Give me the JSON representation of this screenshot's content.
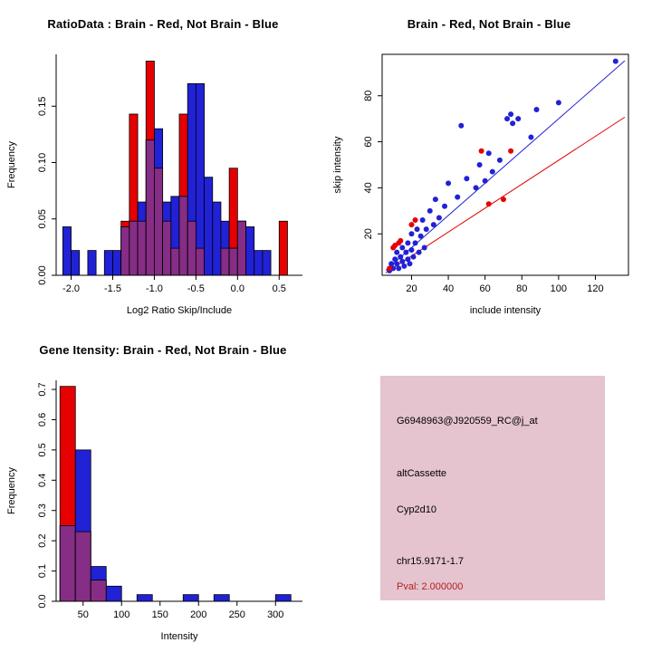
{
  "colors": {
    "red": "#e60000",
    "blue": "#2121d6",
    "overlap": "#862d86",
    "axis": "#000000",
    "info_bg": "#e5c3cf",
    "pval": "#b22222"
  },
  "info_panel": {
    "lines": [
      "G6948963@J920559_RC@j_at",
      "altCassette",
      "Cyp2d10",
      "chr15.9171-1.7",
      "Pval: 2.000000"
    ]
  },
  "chart_data": [
    {
      "type": "bar",
      "subtype": "overlaid-histogram",
      "title": "RatioData : Brain - Red, Not Brain - Blue",
      "xlabel": "Log2 Ratio Skip/Include",
      "ylabel": "Frequency",
      "xlim": [
        -2.18,
        0.78
      ],
      "ylim": [
        0,
        0.196
      ],
      "xticks": [
        -2.0,
        -1.5,
        -1.0,
        -0.5,
        0.0,
        0.5
      ],
      "xtick_labels": [
        "-2.0",
        "-1.5",
        "-1.0",
        "-0.5",
        "0.0",
        "0.5"
      ],
      "yticks": [
        0.0,
        0.05,
        0.1,
        0.15
      ],
      "ytick_labels": [
        "0.00",
        "0.05",
        "0.10",
        "0.15"
      ],
      "bins_start": -2.1,
      "bin_width": 0.1,
      "red": [
        0,
        0,
        0,
        0,
        0,
        0,
        0,
        0.048,
        0.143,
        0.048,
        0.19,
        0.095,
        0.048,
        0.024,
        0.143,
        0.048,
        0.024,
        0,
        0,
        0.024,
        0.095,
        0.048,
        0,
        0,
        0,
        0,
        0.048,
        0
      ],
      "blue": [
        0.043,
        0.022,
        0,
        0.022,
        0,
        0.022,
        0.022,
        0.043,
        0.048,
        0.065,
        0.12,
        0.13,
        0.065,
        0.07,
        0.07,
        0.17,
        0.17,
        0.087,
        0.065,
        0.048,
        0.024,
        0.048,
        0.043,
        0.022,
        0.022,
        0,
        0,
        0
      ]
    },
    {
      "type": "scatter",
      "title": "Brain - Red, Not Brain - Blue",
      "xlabel": "include intensity",
      "ylabel": "skip intensity",
      "xlim": [
        4,
        138
      ],
      "ylim": [
        2,
        98
      ],
      "xticks": [
        20,
        40,
        60,
        80,
        100,
        120
      ],
      "xtick_labels": [
        "20",
        "40",
        "60",
        "80",
        "100",
        "120"
      ],
      "yticks": [
        20,
        40,
        60,
        80
      ],
      "ytick_labels": [
        "20",
        "40",
        "60",
        "80"
      ],
      "blue_points": [
        [
          8,
          4
        ],
        [
          9,
          7
        ],
        [
          10,
          5
        ],
        [
          11,
          9
        ],
        [
          12,
          7
        ],
        [
          12,
          12
        ],
        [
          13,
          5
        ],
        [
          14,
          10
        ],
        [
          15,
          8
        ],
        [
          15,
          14
        ],
        [
          16,
          6
        ],
        [
          17,
          12
        ],
        [
          18,
          9
        ],
        [
          18,
          16
        ],
        [
          19,
          7
        ],
        [
          20,
          13
        ],
        [
          20,
          20
        ],
        [
          21,
          10
        ],
        [
          22,
          16
        ],
        [
          23,
          22
        ],
        [
          24,
          12
        ],
        [
          25,
          19
        ],
        [
          26,
          26
        ],
        [
          27,
          14
        ],
        [
          28,
          22
        ],
        [
          30,
          30
        ],
        [
          32,
          24
        ],
        [
          33,
          35
        ],
        [
          35,
          27
        ],
        [
          38,
          32
        ],
        [
          40,
          42
        ],
        [
          45,
          36
        ],
        [
          47,
          67
        ],
        [
          50,
          44
        ],
        [
          55,
          40
        ],
        [
          57,
          50
        ],
        [
          60,
          43
        ],
        [
          62,
          55
        ],
        [
          64,
          47
        ],
        [
          68,
          52
        ],
        [
          72,
          70
        ],
        [
          74,
          72
        ],
        [
          75,
          68
        ],
        [
          78,
          70
        ],
        [
          85,
          62
        ],
        [
          88,
          74
        ],
        [
          100,
          77
        ],
        [
          131,
          95
        ]
      ],
      "red_points": [
        [
          8,
          5
        ],
        [
          10,
          14
        ],
        [
          11,
          15
        ],
        [
          13,
          16
        ],
        [
          14,
          17
        ],
        [
          20,
          24
        ],
        [
          22,
          26
        ],
        [
          58,
          56
        ],
        [
          62,
          33
        ],
        [
          70,
          35
        ],
        [
          74,
          56
        ]
      ],
      "blue_line": [
        [
          6,
          4.2
        ],
        [
          136,
          95.2
        ]
      ],
      "red_line": [
        [
          6,
          3.1
        ],
        [
          136,
          70.7
        ]
      ]
    },
    {
      "type": "bar",
      "subtype": "overlaid-histogram",
      "title": "Gene Itensity: Brain - Red, Not Brain - Blue",
      "xlabel": "Intensity",
      "ylabel": "Frequency",
      "xlim": [
        15,
        335
      ],
      "ylim": [
        0,
        0.73
      ],
      "xticks": [
        50,
        100,
        150,
        200,
        250,
        300
      ],
      "xtick_labels": [
        "50",
        "100",
        "150",
        "200",
        "250",
        "300"
      ],
      "yticks": [
        0.0,
        0.1,
        0.2,
        0.3,
        0.4,
        0.5,
        0.6,
        0.7
      ],
      "ytick_labels": [
        "0.0",
        "0.1",
        "0.2",
        "0.3",
        "0.4",
        "0.5",
        "0.6",
        "0.7"
      ],
      "bins_start": 20,
      "bin_width": 20,
      "red": [
        0.71,
        0.23,
        0.07,
        0,
        0,
        0,
        0,
        0,
        0,
        0,
        0,
        0,
        0,
        0,
        0,
        0
      ],
      "blue": [
        0.25,
        0.5,
        0.115,
        0.05,
        0,
        0.022,
        0,
        0,
        0.022,
        0,
        0.022,
        0,
        0,
        0,
        0.022,
        0
      ]
    }
  ]
}
